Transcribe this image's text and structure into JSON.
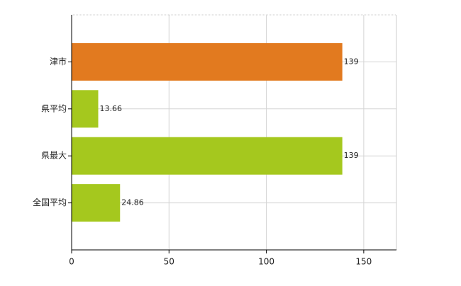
{
  "chart_data": {
    "type": "bar",
    "orientation": "horizontal",
    "categories": [
      "津市",
      "県平均",
      "県最大",
      "全国平均"
    ],
    "values": [
      139,
      13.66,
      139,
      24.86
    ],
    "colors": [
      "#e27a1f",
      "#a5c81e",
      "#a5c81e",
      "#a5c81e"
    ],
    "xlim": [
      0,
      166.8
    ],
    "xticks": [
      0,
      50,
      100,
      150
    ],
    "grid": true
  }
}
